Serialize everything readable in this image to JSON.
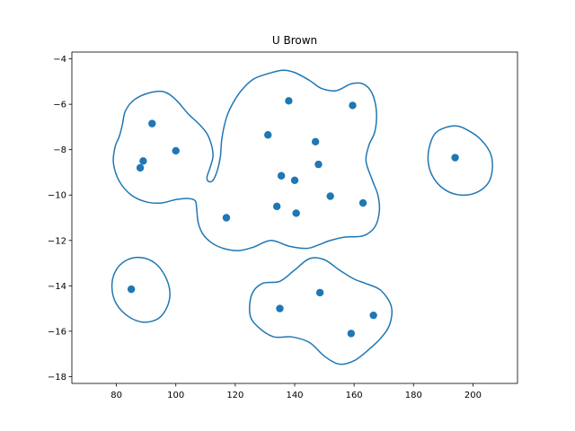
{
  "chart_data": {
    "type": "scatter",
    "title": "U Brown",
    "xlabel": "",
    "ylabel": "",
    "xlim": [
      65,
      215
    ],
    "ylim": [
      -18.3,
      -3.7
    ],
    "xticks": [
      80,
      100,
      120,
      140,
      160,
      180,
      200
    ],
    "yticks": [
      -18,
      -16,
      -14,
      -12,
      -10,
      -8,
      -6,
      -4
    ],
    "grid": false,
    "legend": "none",
    "color": "#1f77b4",
    "points": [
      {
        "x": 92,
        "y": -6.85
      },
      {
        "x": 100,
        "y": -8.05
      },
      {
        "x": 89,
        "y": -8.5
      },
      {
        "x": 88,
        "y": -8.8
      },
      {
        "x": 117,
        "y": -11.0
      },
      {
        "x": 131,
        "y": -7.35
      },
      {
        "x": 138,
        "y": -5.85
      },
      {
        "x": 159.5,
        "y": -6.05
      },
      {
        "x": 147,
        "y": -7.65
      },
      {
        "x": 148,
        "y": -8.65
      },
      {
        "x": 135.5,
        "y": -9.15
      },
      {
        "x": 140,
        "y": -9.35
      },
      {
        "x": 152,
        "y": -10.05
      },
      {
        "x": 163,
        "y": -10.35
      },
      {
        "x": 134,
        "y": -10.5
      },
      {
        "x": 140.5,
        "y": -10.8
      },
      {
        "x": 194,
        "y": -8.35
      },
      {
        "x": 85,
        "y": -14.15
      },
      {
        "x": 148.5,
        "y": -14.3
      },
      {
        "x": 135,
        "y": -15.0
      },
      {
        "x": 166.5,
        "y": -15.3
      },
      {
        "x": 159,
        "y": -16.1
      }
    ],
    "contours": [
      [
        [
          91,
          -5.5
        ],
        [
          96,
          -5.45
        ],
        [
          100,
          -5.8
        ],
        [
          104,
          -6.4
        ],
        [
          108,
          -6.9
        ],
        [
          110.5,
          -7.3
        ],
        [
          112,
          -7.8
        ],
        [
          112.5,
          -8.3
        ],
        [
          111.5,
          -8.8
        ],
        [
          110.5,
          -9.2
        ],
        [
          111,
          -9.4
        ],
        [
          112.5,
          -9.35
        ],
        [
          114,
          -8.9
        ],
        [
          115,
          -8.3
        ],
        [
          115.5,
          -7.5
        ],
        [
          117,
          -6.6
        ],
        [
          119,
          -6.0
        ],
        [
          122,
          -5.4
        ],
        [
          126,
          -4.9
        ],
        [
          131,
          -4.65
        ],
        [
          136,
          -4.5
        ],
        [
          140,
          -4.6
        ],
        [
          145,
          -4.95
        ],
        [
          149,
          -5.3
        ],
        [
          154,
          -5.4
        ],
        [
          159,
          -5.1
        ],
        [
          163,
          -5.1
        ],
        [
          166,
          -5.5
        ],
        [
          167.5,
          -6.3
        ],
        [
          167,
          -7.2
        ],
        [
          165,
          -7.8
        ],
        [
          164,
          -8.5
        ],
        [
          166,
          -9.3
        ],
        [
          168,
          -10.0
        ],
        [
          168.5,
          -10.7
        ],
        [
          167,
          -11.4
        ],
        [
          163,
          -11.8
        ],
        [
          157,
          -11.85
        ],
        [
          152,
          -12.0
        ],
        [
          148,
          -12.2
        ],
        [
          144,
          -12.35
        ],
        [
          138,
          -12.25
        ],
        [
          132,
          -12.0
        ],
        [
          126,
          -12.3
        ],
        [
          121,
          -12.45
        ],
        [
          116,
          -12.35
        ],
        [
          112,
          -12.1
        ],
        [
          109,
          -11.7
        ],
        [
          107.5,
          -11.2
        ],
        [
          107,
          -10.6
        ],
        [
          106.5,
          -10.25
        ],
        [
          104,
          -10.15
        ],
        [
          100,
          -10.2
        ],
        [
          95,
          -10.35
        ],
        [
          90,
          -10.3
        ],
        [
          85,
          -10.0
        ],
        [
          81,
          -9.4
        ],
        [
          79,
          -8.6
        ],
        [
          79.5,
          -7.9
        ],
        [
          81,
          -7.4
        ],
        [
          82,
          -6.9
        ],
        [
          83,
          -6.3
        ],
        [
          86,
          -5.8
        ],
        [
          91,
          -5.5
        ]
      ],
      [
        [
          194,
          -6.95
        ],
        [
          199,
          -7.2
        ],
        [
          203,
          -7.6
        ],
        [
          206,
          -8.2
        ],
        [
          206.5,
          -8.9
        ],
        [
          205,
          -9.5
        ],
        [
          201,
          -9.9
        ],
        [
          196,
          -10.0
        ],
        [
          191,
          -9.8
        ],
        [
          187,
          -9.3
        ],
        [
          185,
          -8.6
        ],
        [
          185.5,
          -7.8
        ],
        [
          188,
          -7.2
        ],
        [
          194,
          -6.95
        ]
      ],
      [
        [
          88,
          -12.75
        ],
        [
          93,
          -13.0
        ],
        [
          96.5,
          -13.6
        ],
        [
          98,
          -14.3
        ],
        [
          97,
          -14.95
        ],
        [
          94,
          -15.45
        ],
        [
          89,
          -15.6
        ],
        [
          84,
          -15.35
        ],
        [
          80,
          -14.8
        ],
        [
          78.5,
          -14.1
        ],
        [
          79.5,
          -13.4
        ],
        [
          83,
          -12.9
        ],
        [
          88,
          -12.75
        ]
      ],
      [
        [
          145,
          -12.8
        ],
        [
          150,
          -12.85
        ],
        [
          155,
          -13.3
        ],
        [
          160,
          -13.7
        ],
        [
          164,
          -13.9
        ],
        [
          169,
          -14.2
        ],
        [
          172.5,
          -14.9
        ],
        [
          172,
          -15.7
        ],
        [
          169,
          -16.3
        ],
        [
          165,
          -16.8
        ],
        [
          160,
          -17.3
        ],
        [
          155,
          -17.45
        ],
        [
          150,
          -17.1
        ],
        [
          145,
          -16.5
        ],
        [
          139,
          -16.25
        ],
        [
          133,
          -16.25
        ],
        [
          128,
          -15.85
        ],
        [
          125,
          -15.3
        ],
        [
          125.5,
          -14.4
        ],
        [
          129,
          -13.9
        ],
        [
          135,
          -13.8
        ],
        [
          140,
          -13.3
        ],
        [
          145,
          -12.8
        ]
      ]
    ]
  }
}
